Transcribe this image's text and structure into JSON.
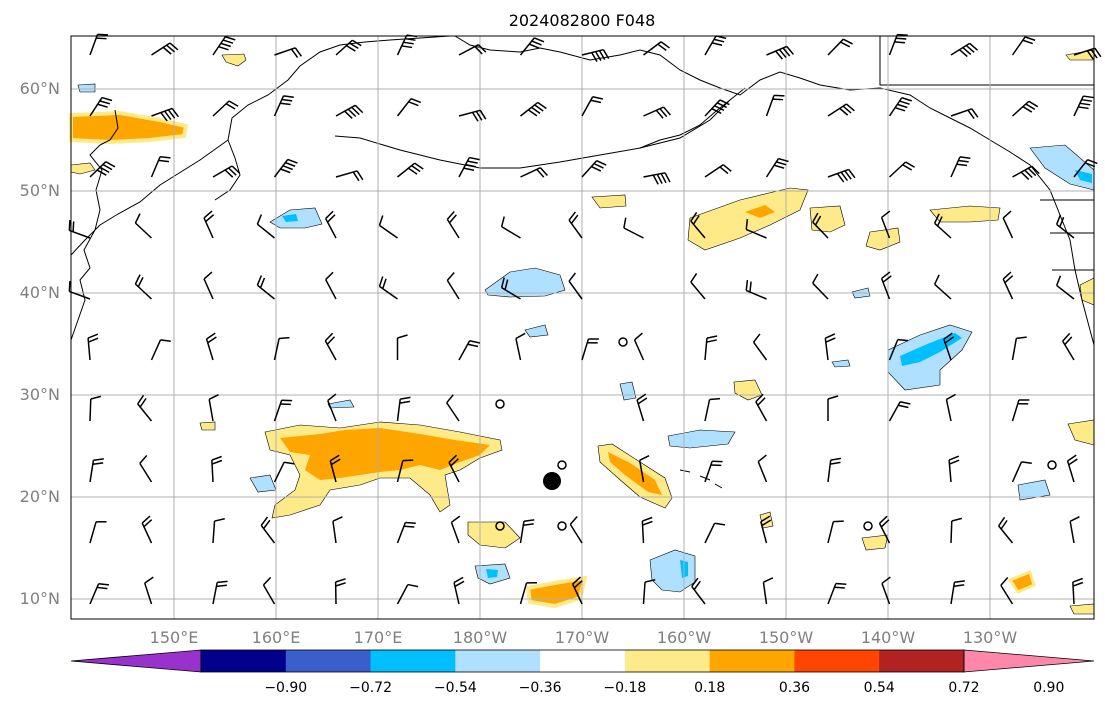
{
  "title": "2024082800 F048",
  "map": {
    "lon_range": [
      "140°E",
      "120°W"
    ],
    "lat_range": [
      "8°N",
      "65°N"
    ],
    "grid": true,
    "lat_labels": [
      "60°N",
      "50°N",
      "40°N",
      "30°N",
      "20°N",
      "10°N"
    ],
    "lon_labels": [
      "150°E",
      "160°E",
      "170°E",
      "180°W",
      "170°W",
      "160°W",
      "150°W",
      "140°W",
      "130°W"
    ]
  },
  "colorbar": {
    "orientation": "horizontal",
    "extend": "both",
    "levels": [
      -0.9,
      -0.72,
      -0.54,
      -0.36,
      -0.18,
      0.18,
      0.36,
      0.54,
      0.72,
      0.9
    ],
    "tick_labels": [
      "−0.90",
      "−0.72",
      "−0.54",
      "−0.36",
      "−0.18",
      "0.18",
      "0.36",
      "0.54",
      "0.72",
      "0.90"
    ],
    "colors": [
      "#9932cc",
      "#00008b",
      "#3a5fcd",
      "#00bfff",
      "#b0e0ff",
      "#ffffff",
      "#ffea8a",
      "#ffa500",
      "#ff4500",
      "#b22222",
      "#ff88aa"
    ]
  },
  "colors": {
    "positive_light": "#ffea8a",
    "positive_mid": "#ffa500",
    "negative_light": "#b0e0ff",
    "negative_mid": "#00bfff",
    "grid": "#b0b0b0",
    "barb": "#000000"
  }
}
